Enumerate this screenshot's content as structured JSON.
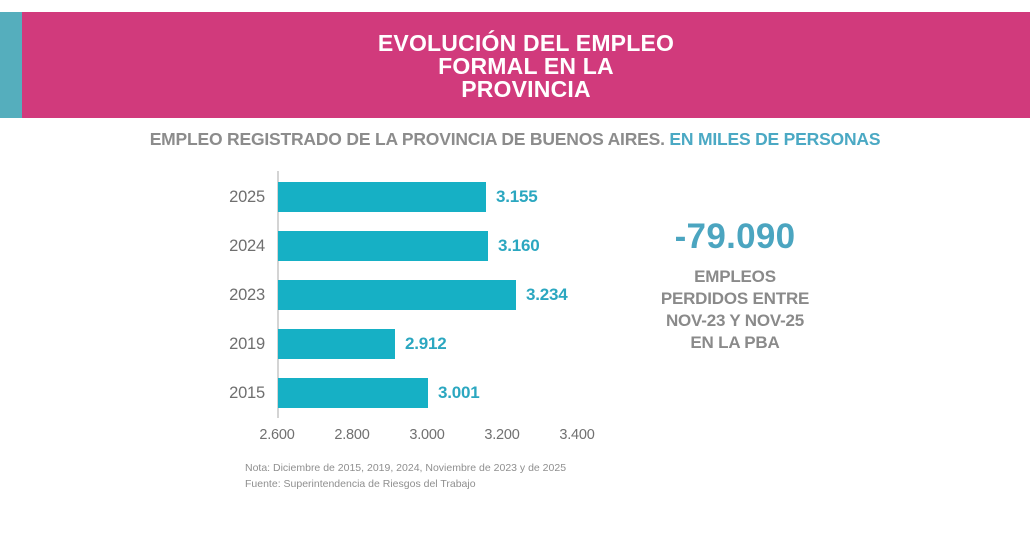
{
  "colors": {
    "accent_teal": "#55aebd",
    "header_pink": "#d13a7c",
    "bar_teal": "#16b0c5",
    "value_teal": "#2ba7c0",
    "callout_teal": "#4ba5c0",
    "gray_text": "#8c8c8c"
  },
  "header": {
    "title": "EVOLUCIÓN DEL EMPLEO\nFORMAL EN LA\nPROVINCIA"
  },
  "subtitle": {
    "main": "EMPLEO REGISTRADO DE LA PROVINCIA DE BUENOS AIRES. ",
    "highlight": "EN MILES DE PERSONAS"
  },
  "chart_data": {
    "type": "bar",
    "orientation": "horizontal",
    "title": "EMPLEO REGISTRADO DE LA PROVINCIA DE BUENOS AIRES. EN MILES DE PERSONAS",
    "categories": [
      "2025",
      "2024",
      "2023",
      "2019",
      "2015"
    ],
    "values": [
      3155,
      3160,
      3234,
      2912,
      3001
    ],
    "value_labels": [
      "3.155",
      "3.160",
      "3.234",
      "2.912",
      "3.001"
    ],
    "x_ticks": [
      {
        "value": 2600,
        "label": "2.600"
      },
      {
        "value": 2800,
        "label": "2.800"
      },
      {
        "value": 3000,
        "label": "3.000"
      },
      {
        "value": 3200,
        "label": "3.200"
      },
      {
        "value": 3400,
        "label": "3.400"
      }
    ],
    "xlim": [
      2600,
      3400
    ],
    "grid": false,
    "legend": "none"
  },
  "callout": {
    "number": "-79.090",
    "text": "EMPLEOS\nPERDIDOS ENTRE\nNOV-23 Y NOV-25\nEN LA PBA"
  },
  "footnote": {
    "note": "Nota: Diciembre de 2015, 2019, 2024, Noviembre de 2023  y de 2025",
    "source": "Fuente: Superintendencia de Riesgos del Trabajo"
  }
}
